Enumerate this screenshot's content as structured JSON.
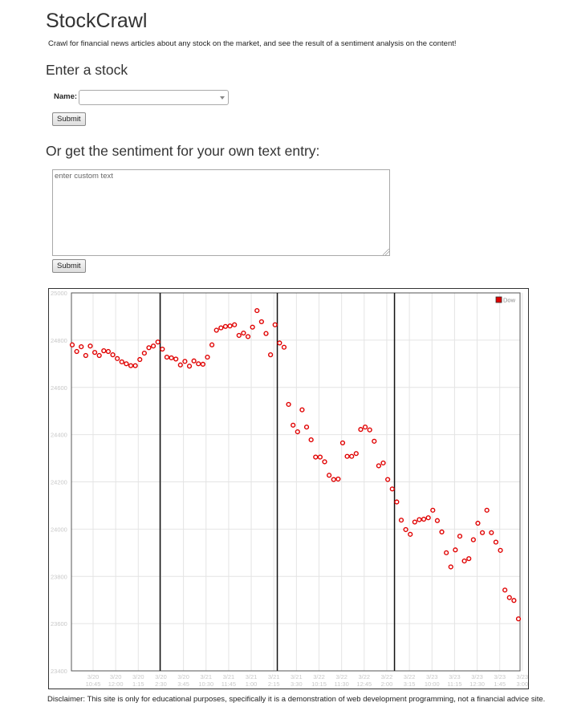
{
  "header": {
    "title": "StockCrawl",
    "description": "Crawl for financial news articles about any stock on the market, and see the result of a sentiment analysis on the content!"
  },
  "stock_form": {
    "heading": "Enter a stock",
    "name_label": "Name:",
    "selected_value": "",
    "submit_label": "Submit"
  },
  "custom_text_form": {
    "heading": "Or get the sentiment for your own text entry:",
    "placeholder": "enter custom text",
    "value": "",
    "submit_label": "Submit"
  },
  "footer": {
    "disclaimer": "Disclaimer: This site is only for educational purposes, specifically it is a demonstration of web development programming, not a financial advice site."
  },
  "chart_data": {
    "type": "scatter",
    "title": "",
    "xlabel": "",
    "ylabel": "",
    "ylim": [
      23400,
      25000
    ],
    "y_ticks": [
      "23400",
      "23600",
      "23800",
      "24000",
      "24200",
      "24400",
      "24600",
      "24800",
      "25000"
    ],
    "x_tick_labels": [
      [
        "3/20",
        "10:45"
      ],
      [
        "3/20",
        "12:00"
      ],
      [
        "3/20",
        "1:15"
      ],
      [
        "3/20",
        "2:30"
      ],
      [
        "3/20",
        "3:45"
      ],
      [
        "3/21",
        "10:30"
      ],
      [
        "3/21",
        "11:45"
      ],
      [
        "3/21",
        "1:00"
      ],
      [
        "3/21",
        "2:15"
      ],
      [
        "3/21",
        "3:30"
      ],
      [
        "3/22",
        "10:15"
      ],
      [
        "3/22",
        "11:30"
      ],
      [
        "3/22",
        "12:45"
      ],
      [
        "3/22",
        "2:00"
      ],
      [
        "3/22",
        "3:15"
      ],
      [
        "3/23",
        "10:00"
      ],
      [
        "3/23",
        "11:15"
      ],
      [
        "3/23",
        "12:30"
      ],
      [
        "3/23",
        "1:45"
      ],
      [
        "3/23",
        "3:00"
      ]
    ],
    "day_separators_after_index": [
      20,
      46,
      72
    ],
    "legend": "top-right",
    "grid": true,
    "series": [
      {
        "name": "Dow",
        "color": "#e00000",
        "values": [
          24780,
          24752,
          24772,
          24735,
          24775,
          24748,
          24735,
          24755,
          24752,
          24738,
          24722,
          24708,
          24700,
          24692,
          24692,
          24718,
          24745,
          24768,
          24775,
          24792,
          24762,
          24728,
          24725,
          24720,
          24695,
          24710,
          24690,
          24712,
          24700,
          24698,
          24728,
          24780,
          24842,
          24852,
          24858,
          24860,
          24865,
          24820,
          24830,
          24815,
          24855,
          24925,
          24878,
          24828,
          24738,
          24865,
          24788,
          24770,
          24528,
          24440,
          24412,
          24505,
          24432,
          24378,
          24305,
          24305,
          24285,
          24228,
          24210,
          24212,
          24365,
          24308,
          24308,
          24320,
          24422,
          24432,
          24420,
          24372,
          24268,
          24280,
          24210,
          24170,
          24115,
          24038,
          23998,
          23978,
          24030,
          24040,
          24042,
          24048,
          24080,
          24036,
          23988,
          23900,
          23840,
          23912,
          23970,
          23865,
          23875,
          23955,
          24025,
          23985,
          24080,
          23985,
          23945,
          23910,
          23742,
          23710,
          23698,
          23620
        ]
      }
    ]
  }
}
